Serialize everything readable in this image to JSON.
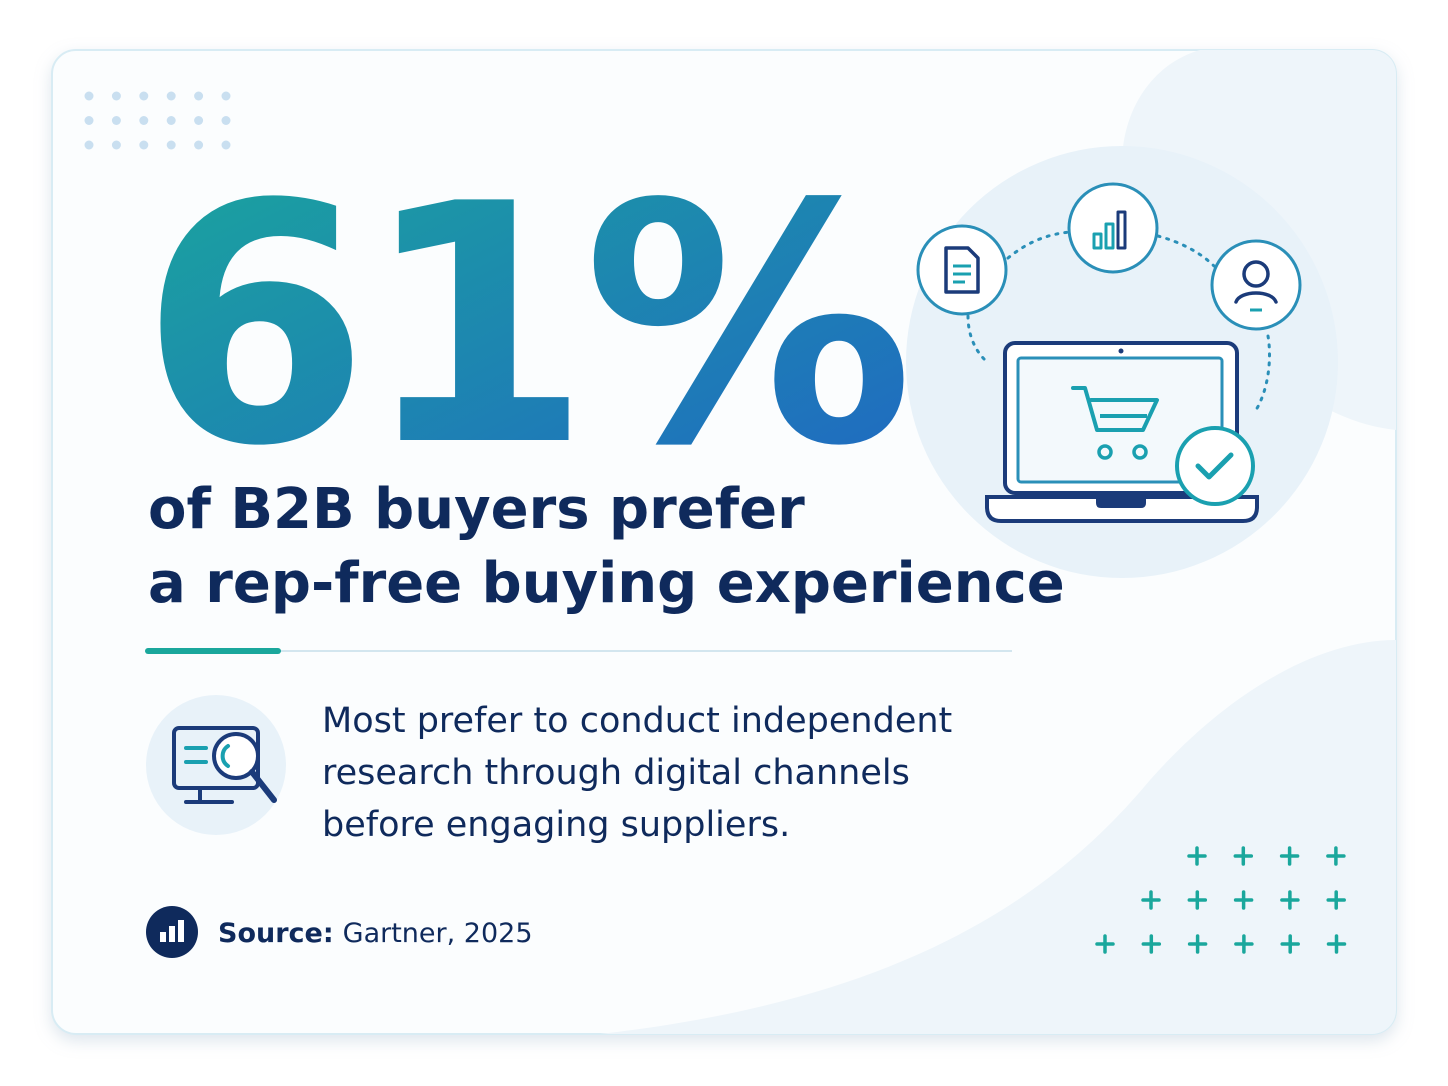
{
  "stat": "61%",
  "headline": [
    "of B2B buyers prefer",
    "a rep-free buying experience"
  ],
  "description": [
    "Most prefer to conduct independent",
    "research through digital channels",
    "before engaging suppliers."
  ],
  "source": {
    "label": "Source:",
    "text": "Gartner, 2025"
  }
}
